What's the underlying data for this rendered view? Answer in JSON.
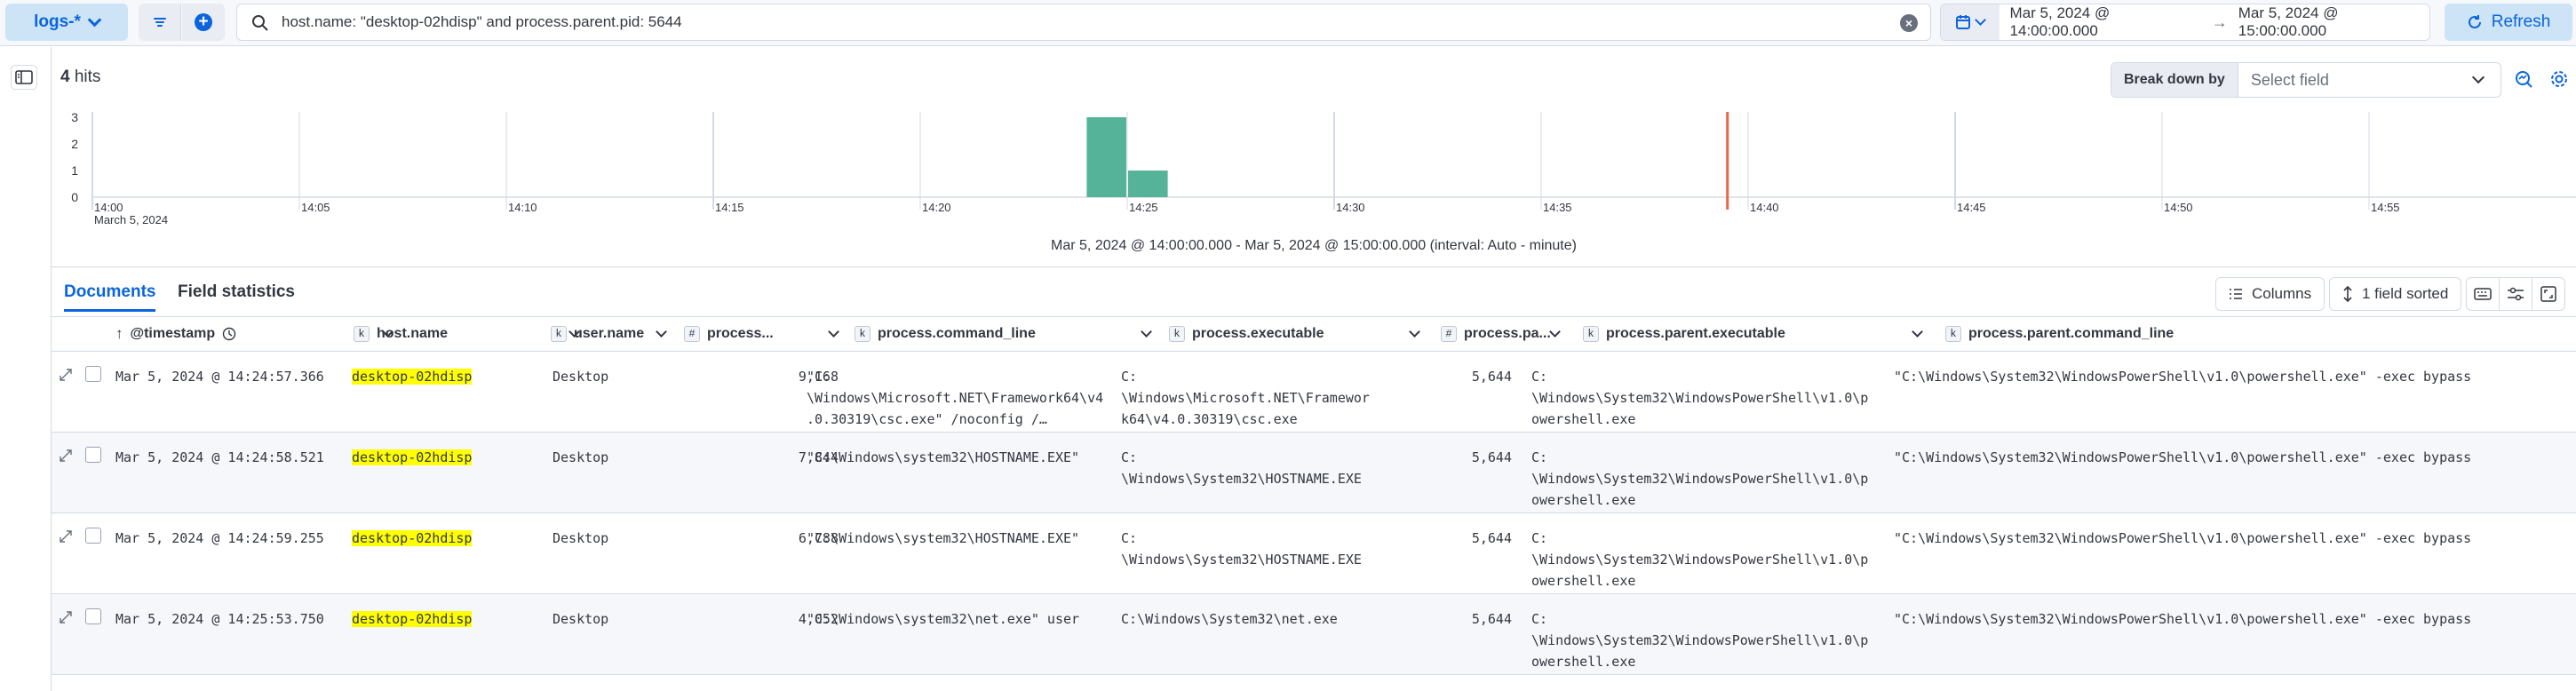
{
  "topbar": {
    "dataview_label": "logs-*",
    "query": "host.name: \"desktop-02hdisp\" and process.parent.pid: 5644",
    "date_start": "Mar 5, 2024 @ 14:00:00.000",
    "date_end": "Mar 5, 2024 @ 15:00:00.000",
    "refresh_label": "Refresh"
  },
  "histogram": {
    "hits_count": "4",
    "hits_label": "hits",
    "breakdown_label": "Break down by",
    "breakdown_placeholder": "Select field",
    "caption": "Mar 5, 2024 @ 14:00:00.000 - Mar 5, 2024 @ 15:00:00.000 (interval: Auto - minute)"
  },
  "chart_data": {
    "type": "bar",
    "x_ticks": [
      "14:00",
      "14:05",
      "14:10",
      "14:15",
      "14:20",
      "14:25",
      "14:30",
      "14:35",
      "14:40",
      "14:45",
      "14:50",
      "14:55"
    ],
    "x_sublabel": "March 5, 2024",
    "y_ticks": [
      0,
      1,
      2,
      3
    ],
    "ylim": [
      0,
      3
    ],
    "xlim_minutes": [
      0,
      60
    ],
    "bars": [
      {
        "minute": 24,
        "value": 3
      },
      {
        "minute": 25,
        "value": 1
      }
    ],
    "bar_color": "#54b399",
    "now_marker_minute": 40
  },
  "tabs": {
    "documents": "Documents",
    "field_statistics": "Field statistics"
  },
  "toolbar": {
    "columns_label": "Columns",
    "sort_label": "1 field sorted"
  },
  "grid": {
    "columns": [
      {
        "type": "",
        "label": "@timestamp"
      },
      {
        "type": "k",
        "label": "host.name"
      },
      {
        "type": "k",
        "label": "user.name"
      },
      {
        "type": "#",
        "label": "process..."
      },
      {
        "type": "k",
        "label": "process.command_line"
      },
      {
        "type": "k",
        "label": "process.executable"
      },
      {
        "type": "#",
        "label": "process.pa..."
      },
      {
        "type": "k",
        "label": "process.parent.executable"
      },
      {
        "type": "k",
        "label": "process.parent.command_line"
      }
    ],
    "rows": [
      {
        "timestamp": "Mar 5, 2024 @ 14:24:57.366",
        "host": "desktop-02hdisp",
        "user": "Desktop",
        "pid": "9,168",
        "cmd": "\"C:\n\\Windows\\Microsoft.NET\\Framework64\\v4\n.0.30319\\csc.exe\" /noconfig /…",
        "exe": "C:\n\\Windows\\Microsoft.NET\\Framewor\nk64\\v4.0.30319\\csc.exe",
        "ppid": "5,644",
        "pexe": "C:\n\\Windows\\System32\\WindowsPowerShell\\v1.0\\p\nowershell.exe",
        "pcmd": "\"C:\\Windows\\System32\\WindowsPowerShell\\v1.0\\powershell.exe\" -exec bypass"
      },
      {
        "timestamp": "Mar 5, 2024 @ 14:24:58.521",
        "host": "desktop-02hdisp",
        "user": "Desktop",
        "pid": "7,844",
        "cmd": "\"C:\\Windows\\system32\\HOSTNAME.EXE\"",
        "exe": "C:\n\\Windows\\System32\\HOSTNAME.EXE",
        "ppid": "5,644",
        "pexe": "C:\n\\Windows\\System32\\WindowsPowerShell\\v1.0\\p\nowershell.exe",
        "pcmd": "\"C:\\Windows\\System32\\WindowsPowerShell\\v1.0\\powershell.exe\" -exec bypass"
      },
      {
        "timestamp": "Mar 5, 2024 @ 14:24:59.255",
        "host": "desktop-02hdisp",
        "user": "Desktop",
        "pid": "6,788",
        "cmd": "\"C:\\Windows\\system32\\HOSTNAME.EXE\"",
        "exe": "C:\n\\Windows\\System32\\HOSTNAME.EXE",
        "ppid": "5,644",
        "pexe": "C:\n\\Windows\\System32\\WindowsPowerShell\\v1.0\\p\nowershell.exe",
        "pcmd": "\"C:\\Windows\\System32\\WindowsPowerShell\\v1.0\\powershell.exe\" -exec bypass"
      },
      {
        "timestamp": "Mar 5, 2024 @ 14:25:53.750",
        "host": "desktop-02hdisp",
        "user": "Desktop",
        "pid": "4,052",
        "cmd": "\"C:\\Windows\\system32\\net.exe\" user",
        "exe": "C:\\Windows\\System32\\net.exe",
        "ppid": "5,644",
        "pexe": "C:\n\\Windows\\System32\\WindowsPowerShell\\v1.0\\p\nowershell.exe",
        "pcmd": "\"C:\\Windows\\System32\\WindowsPowerShell\\v1.0\\powershell.exe\" -exec bypass"
      }
    ]
  }
}
